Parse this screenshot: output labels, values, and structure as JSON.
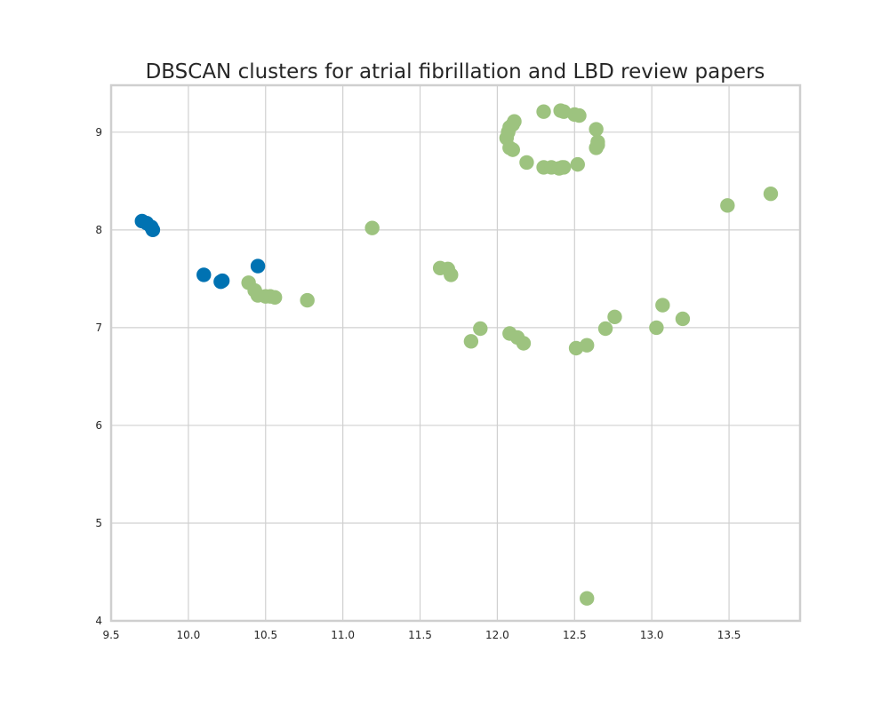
{
  "chart_data": {
    "type": "scatter",
    "title": "DBSCAN clusters for atrial fibrillation and LBD review papers",
    "xlabel": "",
    "ylabel": "",
    "xlim": [
      9.5,
      13.96
    ],
    "ylim": [
      4.0,
      9.48
    ],
    "xticks": [
      9.5,
      10.0,
      10.5,
      11.0,
      11.5,
      12.0,
      12.5,
      13.0,
      13.5
    ],
    "xtick_labels": [
      "9.5",
      "10.0",
      "10.5",
      "11.0",
      "11.5",
      "12.0",
      "12.5",
      "13.0",
      "13.5"
    ],
    "yticks": [
      4,
      5,
      6,
      7,
      8,
      9
    ],
    "ytick_labels": [
      "4",
      "5",
      "6",
      "7",
      "8",
      "9"
    ],
    "grid": true,
    "legend": "none",
    "series": [
      {
        "color": "#0072B2",
        "points": [
          [
            9.7,
            8.09
          ],
          [
            9.73,
            8.07
          ],
          [
            9.76,
            8.03
          ],
          [
            9.77,
            8.0
          ],
          [
            10.1,
            7.54
          ],
          [
            10.21,
            7.47
          ],
          [
            10.22,
            7.48
          ],
          [
            10.45,
            7.63
          ]
        ]
      },
      {
        "color": "#9DC37F",
        "points": [
          [
            10.39,
            7.46
          ],
          [
            10.43,
            7.38
          ],
          [
            10.45,
            7.33
          ],
          [
            10.5,
            7.32
          ],
          [
            10.53,
            7.32
          ],
          [
            10.56,
            7.31
          ],
          [
            10.77,
            7.28
          ],
          [
            11.19,
            8.02
          ],
          [
            11.63,
            7.61
          ],
          [
            11.68,
            7.6
          ],
          [
            11.7,
            7.54
          ],
          [
            11.83,
            6.86
          ],
          [
            11.89,
            6.99
          ],
          [
            12.08,
            6.94
          ],
          [
            12.13,
            6.9
          ],
          [
            12.17,
            6.84
          ],
          [
            12.51,
            6.79
          ],
          [
            12.58,
            6.82
          ],
          [
            12.7,
            6.99
          ],
          [
            12.76,
            7.11
          ],
          [
            13.03,
            7.0
          ],
          [
            13.07,
            7.23
          ],
          [
            13.2,
            7.09
          ],
          [
            13.49,
            8.25
          ],
          [
            13.77,
            8.37
          ],
          [
            12.58,
            4.23
          ],
          [
            12.06,
            8.94
          ],
          [
            12.07,
            9.0
          ],
          [
            12.08,
            8.84
          ],
          [
            12.08,
            9.05
          ],
          [
            12.1,
            8.82
          ],
          [
            12.1,
            9.08
          ],
          [
            12.11,
            9.11
          ],
          [
            12.3,
            9.21
          ],
          [
            12.41,
            9.22
          ],
          [
            12.43,
            9.21
          ],
          [
            12.5,
            9.18
          ],
          [
            12.53,
            9.17
          ],
          [
            12.64,
            9.03
          ],
          [
            12.65,
            8.9
          ],
          [
            12.65,
            8.87
          ],
          [
            12.64,
            8.84
          ],
          [
            12.19,
            8.69
          ],
          [
            12.3,
            8.64
          ],
          [
            12.35,
            8.64
          ],
          [
            12.4,
            8.63
          ],
          [
            12.42,
            8.64
          ],
          [
            12.43,
            8.64
          ],
          [
            12.52,
            8.67
          ]
        ]
      }
    ]
  }
}
